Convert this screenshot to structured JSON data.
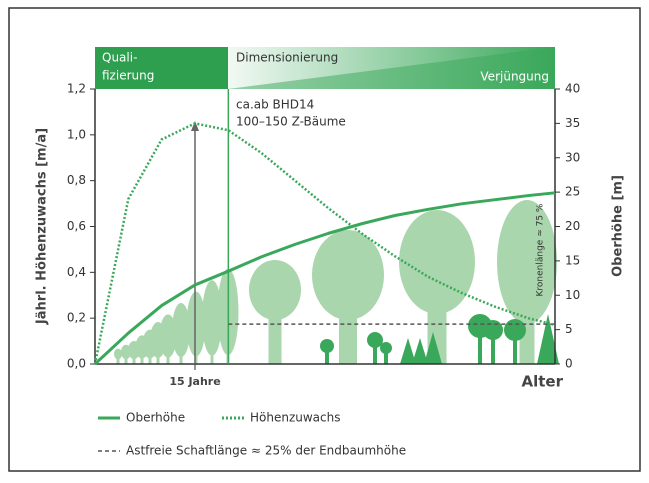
{
  "chart_data": {
    "type": "line",
    "header": {
      "phase1": [
        "Quali-",
        "fizierung"
      ],
      "phase2": "Dimensionierung",
      "phase3": "Verjüngung"
    },
    "annotations": {
      "bhd": "ca.ab BHD14",
      "trees": "100–150 Z-Bäume",
      "crown": "Kronenlänge ≈ 75 %",
      "age": "15 Jahre"
    },
    "x_label": "Alter",
    "y_label": "Jährl. Höhenzuwachs [m/a]",
    "y2_label": "Oberhöhe [m]",
    "x": [
      0,
      5,
      10,
      15,
      20,
      25,
      30,
      35,
      40,
      45,
      50,
      55,
      60,
      65,
      69
    ],
    "xlim": [
      0,
      69
    ],
    "ylim": [
      0,
      1.2
    ],
    "yticks": [
      {
        "value": 0,
        "label": "0,0"
      },
      {
        "value": 0.2,
        "label": "0,2"
      },
      {
        "value": 0.4,
        "label": "0,4"
      },
      {
        "value": 0.6,
        "label": "0,6"
      },
      {
        "value": 0.8,
        "label": "0,8"
      },
      {
        "value": 1.0,
        "label": "1,0"
      },
      {
        "value": 1.2,
        "label": "1,2"
      }
    ],
    "y2lim": [
      0,
      40
    ],
    "y2ticks": [
      0,
      5,
      10,
      15,
      20,
      25,
      30,
      35,
      40
    ],
    "series": [
      {
        "name": "Oberhöhe",
        "color": "#3aa85a",
        "axis": "y2",
        "values": [
          0,
          4.5,
          8.5,
          11.5,
          13.5,
          15.6,
          17.4,
          19,
          20.4,
          21.6,
          22.5,
          23.3,
          23.9,
          24.5,
          24.9
        ]
      },
      {
        "name": "Höhenzuwachs",
        "color": "#3aa85a",
        "values": [
          0,
          0.72,
          0.98,
          1.05,
          1.02,
          0.92,
          0.8,
          0.68,
          0.57,
          0.47,
          0.38,
          0.31,
          0.25,
          0.2,
          0.17
        ]
      }
    ],
    "branch_free": {
      "name": "Astfreie Schaftlänge ≈ 25% der Endbaumhöhe",
      "x": [
        20,
        69
      ],
      "values": [
        5.8,
        5.8
      ],
      "axis": "y2"
    },
    "marker_x": 15,
    "phase_x": 20
  }
}
